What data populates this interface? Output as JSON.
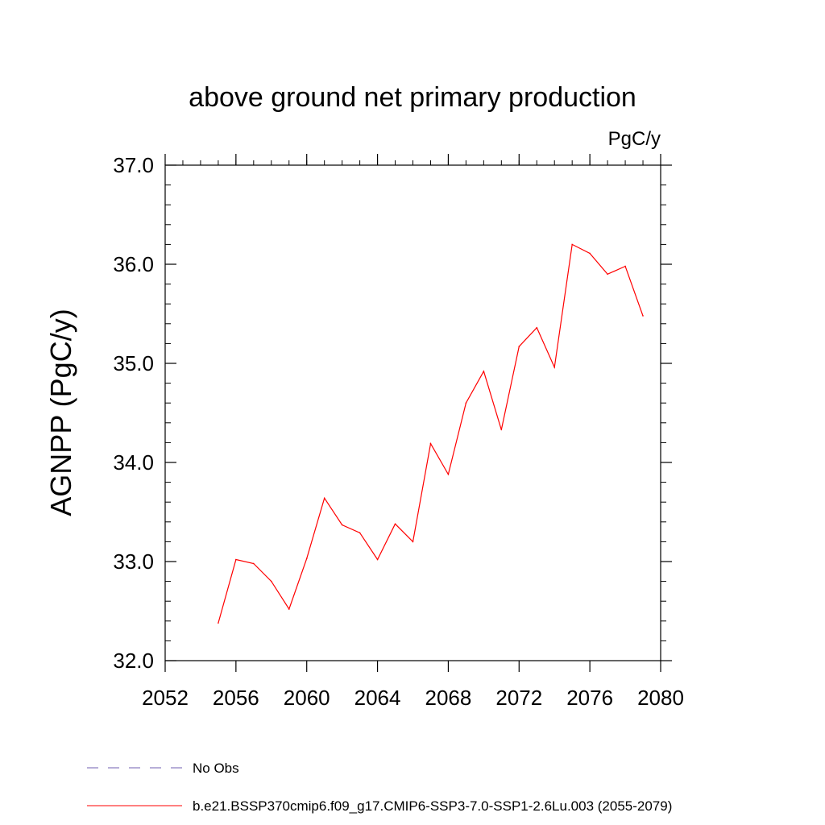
{
  "chart_data": {
    "type": "line",
    "title": "above ground net primary production",
    "units": "PgC/y",
    "ylabel": "AGNPP  (PgC/y)",
    "xlabel": "",
    "xlim": [
      2052,
      2080
    ],
    "ylim": [
      32.0,
      37.0
    ],
    "x_ticks": [
      2052,
      2056,
      2060,
      2064,
      2068,
      2072,
      2076,
      2080
    ],
    "y_ticks": [
      "32.0",
      "33.0",
      "34.0",
      "35.0",
      "36.0",
      "37.0"
    ],
    "grid": false,
    "legend_position": "bottom-left",
    "series": [
      {
        "name": "b.e21.BSSP370cmip6.f09_g17.CMIP6-SSP3-7.0-SSP1-2.6Lu.003 (2055-2079)",
        "color": "#ff0000",
        "x": [
          2055,
          2056,
          2057,
          2058,
          2059,
          2060,
          2061,
          2062,
          2063,
          2064,
          2065,
          2066,
          2067,
          2068,
          2069,
          2070,
          2071,
          2072,
          2073,
          2074,
          2075,
          2076,
          2077,
          2078,
          2079
        ],
        "y": [
          32.38,
          33.02,
          32.98,
          32.8,
          32.52,
          33.03,
          33.64,
          33.37,
          33.29,
          33.02,
          33.38,
          33.2,
          34.19,
          33.88,
          34.6,
          34.92,
          34.33,
          35.17,
          35.36,
          34.96,
          36.2,
          36.11,
          35.9,
          35.98,
          35.48
        ]
      }
    ],
    "legend": [
      {
        "label": "No Obs",
        "color": "#6f5fb0",
        "dash": true
      },
      {
        "label": "b.e21.BSSP370cmip6.f09_g17.CMIP6-SSP3-7.0-SSP1-2.6Lu.003 (2055-2079)",
        "color": "#ff0000",
        "dash": false
      }
    ]
  }
}
